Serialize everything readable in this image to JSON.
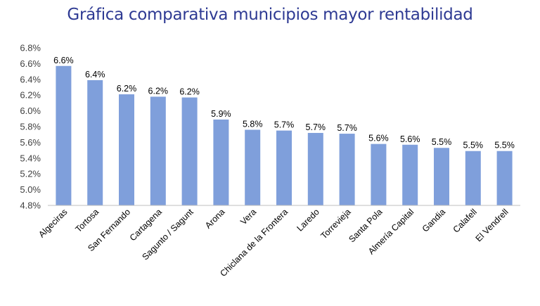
{
  "chart_data": {
    "type": "bar",
    "title": "Gráfica comparativa municipios mayor rentabilidad",
    "xlabel": "",
    "ylabel": "",
    "categories": [
      "Algeciras",
      "Tortosa",
      "San Fernando",
      "Cartagena",
      "Sagunto / Sagunt",
      "Arona",
      "Vera",
      "Chiclana de la Frontera",
      "Laredo",
      "Torrevieja",
      "Santa Pola",
      "Almería Capital",
      "Gandia",
      "Calafell",
      "El Vendrell"
    ],
    "values": [
      6.57,
      6.39,
      6.21,
      6.18,
      6.17,
      5.89,
      5.76,
      5.75,
      5.72,
      5.71,
      5.58,
      5.57,
      5.53,
      5.49,
      5.49
    ],
    "data_labels": [
      "6.6%",
      "6.4%",
      "6.2%",
      "6.2%",
      "6.2%",
      "5.9%",
      "5.8%",
      "5.7%",
      "5.7%",
      "5.7%",
      "5.6%",
      "5.6%",
      "5.5%",
      "5.5%",
      "5.5%"
    ],
    "ylim": [
      4.8,
      6.8
    ],
    "yticks": [
      4.8,
      5.0,
      5.2,
      5.4,
      5.6,
      5.8,
      6.0,
      6.2,
      6.4,
      6.6,
      6.8
    ],
    "ytick_labels": [
      "4.8%",
      "5.0%",
      "5.2%",
      "5.4%",
      "5.6%",
      "5.8%",
      "6.0%",
      "6.2%",
      "6.4%",
      "6.6%",
      "6.8%"
    ],
    "grid": false,
    "legend": "none",
    "bar_color": "#7f9fdb",
    "title_color": "#2e3a93"
  }
}
